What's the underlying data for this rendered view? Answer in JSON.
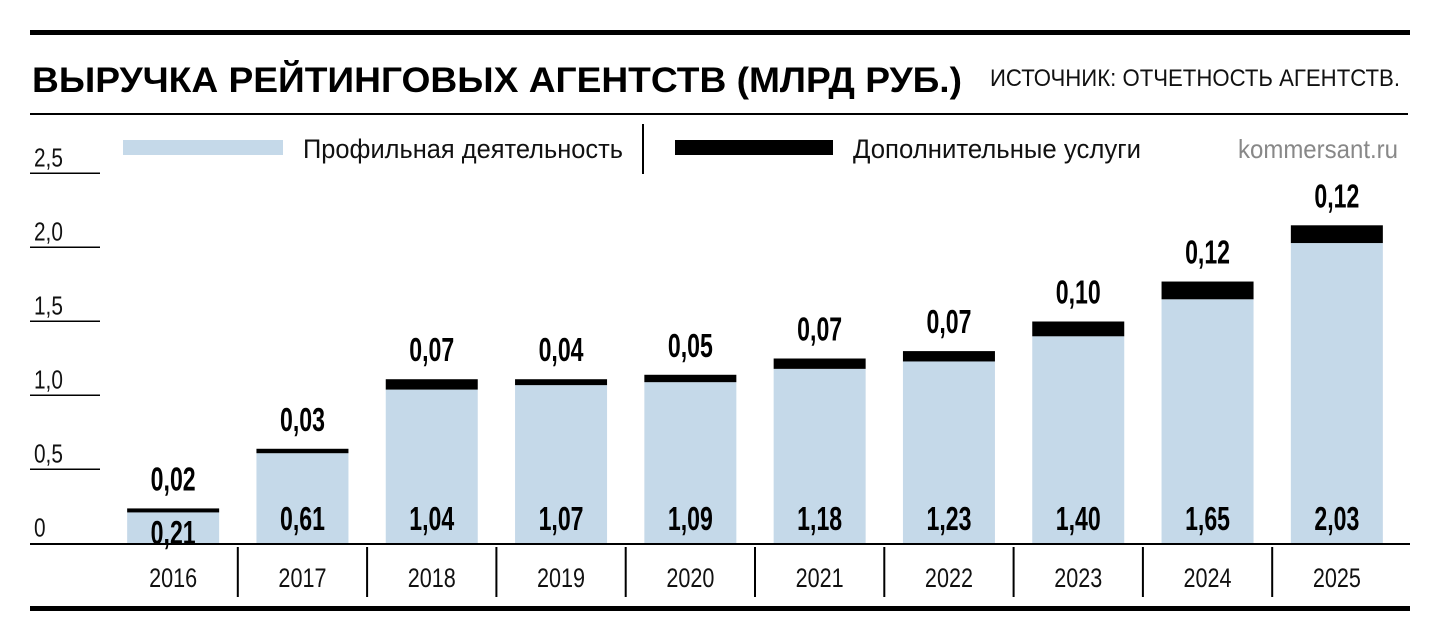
{
  "chart_data": {
    "type": "bar",
    "stacked": true,
    "title": "ВЫРУЧКА РЕЙТИНГОВЫХ АГЕНТСТВ (МЛРД РУБ.)",
    "source": "ИСТОЧНИК: ОТЧЕТНОСТЬ АГЕНТСТВ.",
    "credit": "kommersant.ru",
    "categories": [
      "2016",
      "2017",
      "2018",
      "2019",
      "2020",
      "2021",
      "2022",
      "2023",
      "2024",
      "2025"
    ],
    "series": [
      {
        "name": "Профильная деятельность",
        "color": "#c5d9e9",
        "values": [
          0.21,
          0.61,
          1.04,
          1.07,
          1.09,
          1.18,
          1.23,
          1.4,
          1.65,
          2.03
        ]
      },
      {
        "name": "Дополнительные услуги",
        "color": "#000000",
        "values": [
          0.02,
          0.03,
          0.07,
          0.04,
          0.05,
          0.07,
          0.07,
          0.1,
          0.12,
          0.12
        ]
      }
    ],
    "yticks": [
      {
        "value": 0,
        "label": "0"
      },
      {
        "value": 0.5,
        "label": "0,5"
      },
      {
        "value": 1.0,
        "label": "1,0"
      },
      {
        "value": 1.5,
        "label": "1,5"
      },
      {
        "value": 2.0,
        "label": "2,0"
      },
      {
        "value": 2.5,
        "label": "2,5"
      }
    ],
    "ylim": [
      0,
      2.5
    ],
    "decimal_separator": ",",
    "legend_position": "top"
  }
}
